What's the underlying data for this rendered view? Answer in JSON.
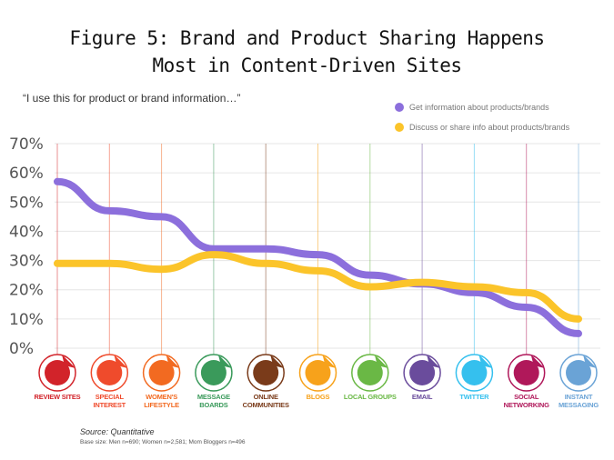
{
  "header": {
    "title_line1": "Figure 5: Brand and Product Sharing Happens",
    "title_line2": "Most in Content-Driven Sites",
    "quote": "“I use this for product or brand information…”"
  },
  "footer": {
    "source": "Source: Quantitative",
    "base": "Base size: Men n=690; Women n=2,581; Mom Bloggers n=496"
  },
  "chart_data": {
    "type": "line",
    "categories": [
      "Review Sites",
      "Special Interest",
      "Women's Lifestyle",
      "Message Boards",
      "Online Communities",
      "Blogs",
      "Local Groups",
      "Email",
      "Twitter",
      "Social Networking",
      "Instant Messaging"
    ],
    "category_colors": [
      "#d2232a",
      "#ef4b2c",
      "#f26a21",
      "#3a9a5b",
      "#7a3b1a",
      "#f7a21b",
      "#6ab845",
      "#6a4c9c",
      "#35c0ee",
      "#b0185a",
      "#6aa3d6"
    ],
    "ylim": [
      0,
      70
    ],
    "yticks": [
      "0%",
      "10%",
      "20%",
      "30%",
      "40%",
      "50%",
      "60%",
      "70%"
    ],
    "grid": true,
    "legend": "top-right",
    "series": [
      {
        "name": "Get information about products/brands",
        "color": "#8c6fdc",
        "values": [
          57,
          47,
          45,
          34,
          34,
          32,
          25,
          22,
          19,
          14,
          5
        ]
      },
      {
        "name": "Discuss or share info about products/brands",
        "color": "#fbc42a",
        "values": [
          29,
          29,
          27,
          32,
          29,
          26.5,
          21,
          22.5,
          21,
          19,
          10
        ]
      }
    ]
  }
}
